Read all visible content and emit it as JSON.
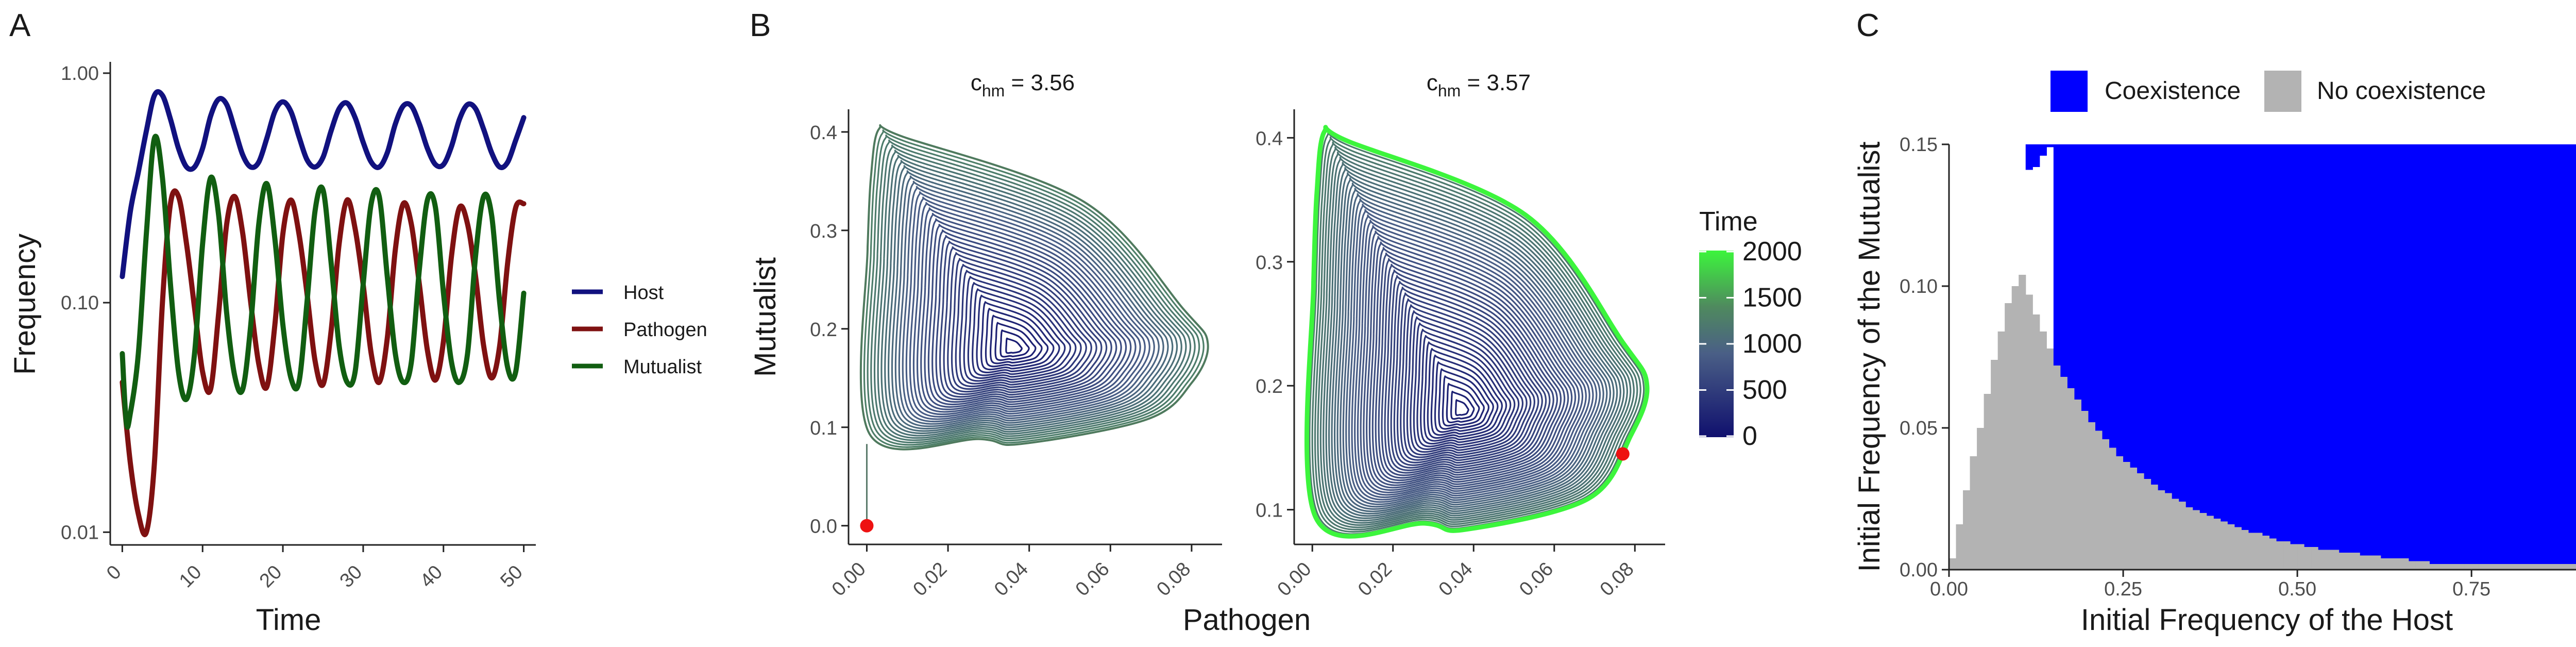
{
  "colors": {
    "host": "#11117f",
    "pathogen": "#7f1111",
    "mutualist": "#115e11",
    "time_low": "#10106e",
    "time_mid": "#5a6f8a",
    "time_high": "#3cf53c",
    "point": "#ee1111",
    "coexistence": "#0000ff",
    "no_coexistence": "#b3b3b3",
    "axis": "#222222"
  },
  "chart_data": [
    {
      "panel": "A",
      "type": "line",
      "xlabel": "Time",
      "ylabel": "Frequency",
      "y_scale": "log10",
      "xlim": [
        -1.5,
        51.5
      ],
      "ylim": [
        0.0088,
        1.12
      ],
      "x_ticks": [
        0,
        10,
        20,
        30,
        40,
        50
      ],
      "x_tick_labels": [
        "0",
        "10",
        "20",
        "30",
        "40",
        "50"
      ],
      "y_ticks": [
        0.01,
        0.1,
        1
      ],
      "y_tick_labels": [
        "0.01",
        "0.10",
        "1.00"
      ],
      "legend_position": "right",
      "series": [
        {
          "name": "Host",
          "color_key": "host",
          "points": [
            [
              0,
              0.13
            ],
            [
              1,
              0.25
            ],
            [
              2,
              0.37
            ],
            [
              3,
              0.56
            ],
            [
              4,
              0.8
            ],
            [
              5,
              0.8
            ],
            [
              6,
              0.63
            ],
            [
              7,
              0.47
            ],
            [
              8,
              0.39
            ],
            [
              9,
              0.39
            ],
            [
              10,
              0.47
            ],
            [
              11,
              0.65
            ],
            [
              12,
              0.77
            ],
            [
              13,
              0.73
            ],
            [
              14,
              0.57
            ],
            [
              15,
              0.44
            ],
            [
              16,
              0.39
            ],
            [
              17,
              0.41
            ],
            [
              18,
              0.52
            ],
            [
              19,
              0.68
            ],
            [
              20,
              0.75
            ],
            [
              21,
              0.68
            ],
            [
              22,
              0.53
            ],
            [
              23,
              0.42
            ],
            [
              24,
              0.39
            ],
            [
              25,
              0.43
            ],
            [
              26,
              0.56
            ],
            [
              27,
              0.7
            ],
            [
              28,
              0.74
            ],
            [
              29,
              0.64
            ],
            [
              30,
              0.5
            ],
            [
              31,
              0.41
            ],
            [
              32,
              0.39
            ],
            [
              33,
              0.45
            ],
            [
              34,
              0.6
            ],
            [
              35,
              0.72
            ],
            [
              36,
              0.72
            ],
            [
              37,
              0.6
            ],
            [
              38,
              0.47
            ],
            [
              39,
              0.4
            ],
            [
              40,
              0.4
            ],
            [
              41,
              0.48
            ],
            [
              42,
              0.63
            ],
            [
              43,
              0.73
            ],
            [
              44,
              0.7
            ],
            [
              45,
              0.57
            ],
            [
              46,
              0.45
            ],
            [
              47,
              0.39
            ],
            [
              48,
              0.41
            ],
            [
              49,
              0.51
            ],
            [
              50,
              0.64
            ]
          ]
        },
        {
          "name": "Pathogen",
          "color_key": "pathogen",
          "points": [
            [
              0,
              0.045
            ],
            [
              1,
              0.02
            ],
            [
              2,
              0.012
            ],
            [
              3,
              0.01
            ],
            [
              4,
              0.02
            ],
            [
              5,
              0.1
            ],
            [
              6,
              0.27
            ],
            [
              7,
              0.29
            ],
            [
              8,
              0.18
            ],
            [
              9,
              0.095
            ],
            [
              10,
              0.05
            ],
            [
              11,
              0.042
            ],
            [
              12,
              0.09
            ],
            [
              13,
              0.22
            ],
            [
              14,
              0.29
            ],
            [
              15,
              0.2
            ],
            [
              16,
              0.1
            ],
            [
              17,
              0.054
            ],
            [
              18,
              0.043
            ],
            [
              19,
              0.08
            ],
            [
              20,
              0.2
            ],
            [
              21,
              0.28
            ],
            [
              22,
              0.2
            ],
            [
              23,
              0.11
            ],
            [
              24,
              0.056
            ],
            [
              25,
              0.044
            ],
            [
              26,
              0.075
            ],
            [
              27,
              0.18
            ],
            [
              28,
              0.28
            ],
            [
              29,
              0.21
            ],
            [
              30,
              0.12
            ],
            [
              31,
              0.06
            ],
            [
              32,
              0.045
            ],
            [
              33,
              0.07
            ],
            [
              34,
              0.17
            ],
            [
              35,
              0.27
            ],
            [
              36,
              0.22
            ],
            [
              37,
              0.12
            ],
            [
              38,
              0.062
            ],
            [
              39,
              0.046
            ],
            [
              40,
              0.068
            ],
            [
              41,
              0.16
            ],
            [
              42,
              0.26
            ],
            [
              43,
              0.22
            ],
            [
              44,
              0.13
            ],
            [
              45,
              0.065
            ],
            [
              46,
              0.047
            ],
            [
              47,
              0.065
            ],
            [
              48,
              0.15
            ],
            [
              49,
              0.26
            ],
            [
              50,
              0.27
            ]
          ]
        },
        {
          "name": "Mutualist",
          "color_key": "mutualist",
          "points": [
            [
              0,
              0.06
            ],
            [
              0.5,
              0.03
            ],
            [
              1,
              0.033
            ],
            [
              2,
              0.06
            ],
            [
              3,
              0.2
            ],
            [
              4,
              0.52
            ],
            [
              5,
              0.35
            ],
            [
              6,
              0.12
            ],
            [
              7,
              0.05
            ],
            [
              8,
              0.038
            ],
            [
              9,
              0.06
            ],
            [
              10,
              0.18
            ],
            [
              11,
              0.35
            ],
            [
              12,
              0.24
            ],
            [
              13,
              0.09
            ],
            [
              14,
              0.048
            ],
            [
              15,
              0.042
            ],
            [
              16,
              0.08
            ],
            [
              17,
              0.22
            ],
            [
              18,
              0.33
            ],
            [
              19,
              0.19
            ],
            [
              20,
              0.08
            ],
            [
              21,
              0.047
            ],
            [
              22,
              0.045
            ],
            [
              23,
              0.1
            ],
            [
              24,
              0.25
            ],
            [
              25,
              0.31
            ],
            [
              26,
              0.15
            ],
            [
              27,
              0.065
            ],
            [
              28,
              0.045
            ],
            [
              29,
              0.05
            ],
            [
              30,
              0.12
            ],
            [
              31,
              0.27
            ],
            [
              32,
              0.29
            ],
            [
              33,
              0.13
            ],
            [
              34,
              0.06
            ],
            [
              35,
              0.045
            ],
            [
              36,
              0.055
            ],
            [
              37,
              0.14
            ],
            [
              38,
              0.28
            ],
            [
              39,
              0.26
            ],
            [
              40,
              0.11
            ],
            [
              41,
              0.055
            ],
            [
              42,
              0.045
            ],
            [
              43,
              0.06
            ],
            [
              44,
              0.16
            ],
            [
              45,
              0.29
            ],
            [
              46,
              0.24
            ],
            [
              47,
              0.1
            ],
            [
              48,
              0.052
            ],
            [
              49,
              0.05
            ],
            [
              50,
              0.11
            ]
          ]
        }
      ]
    },
    {
      "panel": "B",
      "type": "line",
      "subtype": "phase-portrait",
      "xlabel": "Pathogen",
      "ylabel": "Mutualist",
      "color_legend_title": "Time",
      "color_legend_ticks": [
        0,
        500,
        1000,
        1500,
        2000
      ],
      "color_legend_tick_labels": [
        "0",
        "500",
        "1000",
        "1500",
        "2000"
      ],
      "legend_position": "right",
      "facets": [
        {
          "label_base": "c",
          "label_sub": "hm",
          "label_rest": " = 3.56",
          "xlim": [
            -0.0045,
            0.0875
          ],
          "ylim": [
            -0.019,
            0.423
          ],
          "x_ticks": [
            0,
            0.02,
            0.04,
            0.06,
            0.08
          ],
          "x_tick_labels": [
            "0.00",
            "0.02",
            "0.04",
            "0.06",
            "0.08"
          ],
          "y_ticks": [
            0,
            0.1,
            0.2,
            0.3,
            0.4
          ],
          "y_tick_labels": [
            "0.0",
            "0.1",
            "0.2",
            "0.3",
            "0.4"
          ],
          "center": [
            0.036,
            0.18
          ],
          "outer_cycle": {
            "x_min": 0.0002,
            "x_max": 0.084,
            "y_min": 0.083,
            "y_max": 0.403,
            "x_at_y_min": 0.038,
            "y_at_x_max": 0.185,
            "x_at_y_max": 0.003
          },
          "n_cycles": 38,
          "start_point": [
            0.0,
            0.0
          ],
          "start_segment": [
            [
              0.0,
              0.0
            ],
            [
              0.0,
              0.083
            ]
          ]
        },
        {
          "label_base": "c",
          "label_sub": "hm",
          "label_rest": " = 3.57",
          "xlim": [
            -0.0045,
            0.0875
          ],
          "ylim": [
            0.072,
            0.423
          ],
          "x_ticks": [
            0,
            0.02,
            0.04,
            0.06,
            0.08
          ],
          "x_tick_labels": [
            "0.00",
            "0.02",
            "0.04",
            "0.06",
            "0.08"
          ],
          "y_ticks": [
            0.1,
            0.2,
            0.3,
            0.4
          ],
          "y_tick_labels": [
            "0.1",
            "0.2",
            "0.3",
            "0.4"
          ],
          "center": [
            0.037,
            0.18
          ],
          "outer_cycle": {
            "x_min": 0.0003,
            "x_max": 0.083,
            "y_min": 0.084,
            "y_max": 0.405,
            "x_at_y_min": 0.038,
            "y_at_x_max": 0.2,
            "x_at_y_max": 0.003
          },
          "n_cycles": 48,
          "start_point": [
            0.077,
            0.145
          ]
        }
      ]
    },
    {
      "panel": "C",
      "type": "area",
      "subtype": "region-map",
      "xlabel": "Initial Frequency of the Host",
      "ylabel": "Initial Frequency of the Mutualist",
      "xlim": [
        0,
        0.9
      ],
      "ylim": [
        0,
        0.15
      ],
      "x_ticks": [
        0,
        0.25,
        0.5,
        0.75
      ],
      "x_tick_labels": [
        "0.00",
        "0.25",
        "0.50",
        "0.75"
      ],
      "y_ticks": [
        0,
        0.05,
        0.1,
        0.15
      ],
      "y_tick_labels": [
        "0.00",
        "0.05",
        "0.10",
        "0.15"
      ],
      "legend_position": "top",
      "legend": [
        {
          "label": "Coexistence",
          "color_key": "coexistence"
        },
        {
          "label": "No coexistence",
          "color_key": "no_coexistence"
        }
      ],
      "grid": {
        "x_start": 0.0,
        "x_step": 0.01,
        "y_step": 0.002
      },
      "boundary_no_coexistence_top": [
        [
          0.01,
          0.004
        ],
        [
          0.02,
          0.016
        ],
        [
          0.03,
          0.028
        ],
        [
          0.04,
          0.04
        ],
        [
          0.05,
          0.05
        ],
        [
          0.06,
          0.062
        ],
        [
          0.07,
          0.074
        ],
        [
          0.08,
          0.084
        ],
        [
          0.09,
          0.094
        ],
        [
          0.1,
          0.1
        ],
        [
          0.11,
          0.104
        ],
        [
          0.12,
          0.097
        ],
        [
          0.13,
          0.09
        ],
        [
          0.14,
          0.084
        ],
        [
          0.15,
          0.078
        ],
        [
          0.16,
          0.072
        ],
        [
          0.17,
          0.068
        ],
        [
          0.18,
          0.064
        ],
        [
          0.19,
          0.06
        ],
        [
          0.2,
          0.056
        ],
        [
          0.21,
          0.052
        ],
        [
          0.22,
          0.049
        ],
        [
          0.23,
          0.046
        ],
        [
          0.24,
          0.043
        ],
        [
          0.25,
          0.04
        ],
        [
          0.26,
          0.038
        ],
        [
          0.27,
          0.036
        ],
        [
          0.28,
          0.034
        ],
        [
          0.29,
          0.032
        ],
        [
          0.3,
          0.03
        ],
        [
          0.31,
          0.028
        ],
        [
          0.32,
          0.027
        ],
        [
          0.33,
          0.025
        ],
        [
          0.34,
          0.024
        ],
        [
          0.35,
          0.022
        ],
        [
          0.36,
          0.021
        ],
        [
          0.37,
          0.02
        ],
        [
          0.38,
          0.019
        ],
        [
          0.39,
          0.018
        ],
        [
          0.4,
          0.017
        ],
        [
          0.41,
          0.016
        ],
        [
          0.42,
          0.015
        ],
        [
          0.43,
          0.014
        ],
        [
          0.44,
          0.013
        ],
        [
          0.45,
          0.013
        ],
        [
          0.46,
          0.012
        ],
        [
          0.47,
          0.011
        ],
        [
          0.48,
          0.01
        ],
        [
          0.49,
          0.01
        ],
        [
          0.5,
          0.009
        ],
        [
          0.52,
          0.008
        ],
        [
          0.54,
          0.007
        ],
        [
          0.57,
          0.006
        ],
        [
          0.6,
          0.005
        ],
        [
          0.63,
          0.004
        ],
        [
          0.67,
          0.003
        ],
        [
          0.7,
          0.002
        ],
        [
          0.9,
          0.002
        ]
      ],
      "boundary_coexistence_bottom": [
        [
          0.0,
          0.15
        ],
        [
          0.1,
          0.15
        ],
        [
          0.11,
          0.15
        ],
        [
          0.12,
          0.141
        ],
        [
          0.13,
          0.142
        ],
        [
          0.14,
          0.146
        ],
        [
          0.15,
          0.149
        ],
        [
          0.16,
          0.15
        ]
      ]
    }
  ]
}
